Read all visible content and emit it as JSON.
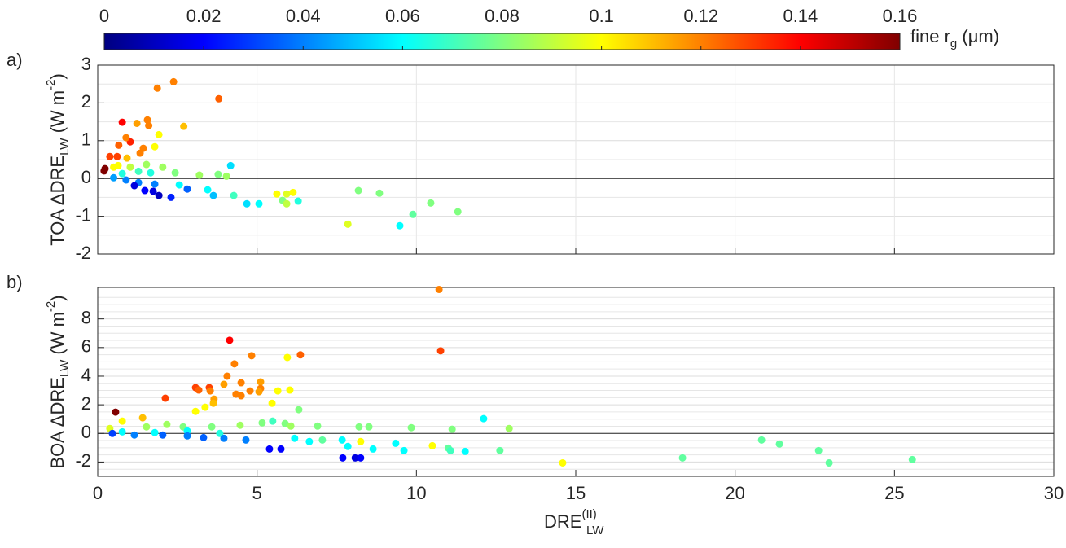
{
  "colorbar": {
    "colormap": "jet",
    "clim": [
      0,
      0.16
    ],
    "ticks": [
      0,
      0.02,
      0.04,
      0.06,
      0.08,
      0.1,
      0.12,
      0.14,
      0.16
    ],
    "label": {
      "main": "fine r",
      "sub": "g",
      "unit": " (μm)"
    }
  },
  "chart_data": [
    {
      "type": "scatter",
      "panel_label": "a)",
      "ylabel": {
        "main": "TOA ΔDRE",
        "sub": "LW",
        "unit": " (W m",
        "sup": "-2",
        "end": ")"
      },
      "xlim": [
        0,
        30
      ],
      "xticks": [
        0,
        5,
        10,
        15,
        20,
        25,
        30
      ],
      "xticklabels": false,
      "xgrid": true,
      "ylim": [
        -2,
        3
      ],
      "yticks": [
        -2,
        -1,
        0,
        1,
        2,
        3
      ],
      "yminorticks": [
        -1.5,
        -0.5,
        0.5,
        1.5,
        2.5
      ],
      "grid": true,
      "zero_line": true,
      "x": [
        0.23,
        0.2,
        0.77,
        1.87,
        2.38,
        3.8,
        1.56,
        1.6,
        1.23,
        2.7,
        1.02,
        0.89,
        0.66,
        1.43,
        1.33,
        1.92,
        1.79,
        0.61,
        0.92,
        0.38,
        0.64,
        0.5,
        1.02,
        1.53,
        2.04,
        2.43,
        3.19,
        3.78,
        4.04,
        4.17,
        1.28,
        1.66,
        0.77,
        0.5,
        0.89,
        1.28,
        1.79,
        1.15,
        1.48,
        1.74,
        1.92,
        2.3,
        2.81,
        2.56,
        3.45,
        3.63,
        4.27,
        4.68,
        5.06,
        5.62,
        5.93,
        6.13,
        5.8,
        5.93,
        6.29,
        7.85,
        8.18,
        8.84,
        9.48,
        9.89,
        10.45,
        11.3
      ],
      "y": [
        0.26,
        0.2,
        1.49,
        2.39,
        2.56,
        2.11,
        1.55,
        1.4,
        1.46,
        1.38,
        0.97,
        1.08,
        0.88,
        0.8,
        0.67,
        1.16,
        0.84,
        0.58,
        0.54,
        0.58,
        0.34,
        0.3,
        0.3,
        0.37,
        0.3,
        0.15,
        0.09,
        0.11,
        0.06,
        0.34,
        0.19,
        0.15,
        0.13,
        0.02,
        -0.04,
        -0.11,
        -0.15,
        -0.19,
        -0.32,
        -0.34,
        -0.45,
        -0.5,
        -0.28,
        -0.17,
        -0.3,
        -0.45,
        -0.45,
        -0.67,
        -0.67,
        -0.41,
        -0.41,
        -0.37,
        -0.58,
        -0.67,
        -0.6,
        -1.21,
        -0.32,
        -0.39,
        -1.25,
        -0.95,
        -0.65,
        -0.88
      ],
      "c": [
        0.16,
        0.16,
        0.14,
        0.12,
        0.12,
        0.125,
        0.12,
        0.12,
        0.115,
        0.11,
        0.135,
        0.12,
        0.125,
        0.12,
        0.12,
        0.1,
        0.1,
        0.13,
        0.11,
        0.13,
        0.1,
        0.1,
        0.09,
        0.085,
        0.085,
        0.08,
        0.085,
        0.08,
        0.085,
        0.055,
        0.07,
        0.065,
        0.065,
        0.045,
        0.04,
        0.04,
        0.04,
        0.015,
        0.02,
        0.015,
        0.01,
        0.025,
        0.035,
        0.06,
        0.06,
        0.05,
        0.07,
        0.055,
        0.06,
        0.1,
        0.095,
        0.1,
        0.08,
        0.09,
        0.065,
        0.095,
        0.08,
        0.08,
        0.06,
        0.075,
        0.08,
        0.08
      ]
    },
    {
      "type": "scatter",
      "panel_label": "b)",
      "ylabel": {
        "main": "BOA ΔDRE",
        "sub": "LW",
        "unit": " (W m",
        "sup": "-2",
        "end": ")"
      },
      "xlabel": {
        "main": "DRE",
        "sup": "(II)",
        "sub": "LW"
      },
      "xlim": [
        0,
        30
      ],
      "xticks": [
        0,
        5,
        10,
        15,
        20,
        25,
        30
      ],
      "xticklabels": true,
      "xgrid": false,
      "ylim": [
        -3,
        10.2
      ],
      "yticks": [
        -2,
        0,
        2,
        4,
        6,
        8
      ],
      "yminorticks": [
        -2.5,
        -1.5,
        -1,
        -0.5,
        0.5,
        1,
        1.5,
        2.5,
        3,
        3.5,
        4.5,
        5,
        5.5,
        6.5,
        7,
        7.5,
        8.5,
        9,
        9.5
      ],
      "grid": true,
      "zero_line": true,
      "x": [
        0.56,
        10.71,
        10.76,
        4.14,
        6.36,
        4.83,
        4.29,
        5.95,
        2.12,
        3.07,
        3.17,
        3.5,
        3.53,
        4.06,
        3.96,
        4.5,
        4.34,
        4.5,
        4.78,
        5.11,
        5.11,
        5.06,
        5.65,
        6.03,
        5.47,
        3.65,
        3.63,
        3.37,
        3.07,
        6.31,
        1.41,
        0.77,
        0.38,
        1.53,
        2.17,
        2.68,
        3.58,
        4.47,
        5.16,
        5.49,
        5.88,
        6.06,
        6.9,
        8.2,
        8.51,
        9.84,
        11.12,
        12.91,
        12.11,
        0.77,
        1.79,
        2.81,
        3.83,
        0.46,
        1.15,
        2.04,
        2.81,
        3.32,
        3.96,
        4.65,
        5.39,
        5.75,
        6.18,
        6.64,
        7.05,
        7.67,
        7.69,
        8.08,
        8.25,
        7.85,
        8.25,
        8.64,
        9.35,
        9.61,
        10.5,
        11.0,
        11.07,
        11.53,
        12.62,
        14.59,
        18.35,
        20.83,
        21.39,
        22.62,
        22.95,
        25.56
      ],
      "y": [
        1.49,
        10.06,
        5.77,
        6.51,
        5.49,
        5.43,
        4.86,
        5.31,
        2.46,
        3.2,
        3.03,
        3.2,
        2.97,
        4.0,
        3.43,
        3.54,
        2.74,
        2.63,
        2.97,
        3.6,
        3.14,
        2.91,
        2.97,
        3.03,
        2.11,
        2.4,
        2.11,
        1.83,
        1.54,
        1.66,
        1.09,
        0.86,
        0.34,
        0.46,
        0.63,
        0.46,
        0.46,
        0.57,
        0.74,
        0.86,
        0.69,
        0.51,
        0.51,
        0.46,
        0.46,
        0.4,
        0.29,
        0.34,
        1.03,
        0.11,
        0.06,
        0.17,
        0,
        0,
        -0.11,
        -0.11,
        -0.17,
        -0.29,
        -0.34,
        -0.46,
        -1.09,
        -1.09,
        -0.34,
        -0.57,
        -0.46,
        -0.46,
        -1.71,
        -1.71,
        -1.71,
        -0.91,
        -0.57,
        -1.09,
        -0.69,
        -1.2,
        -0.86,
        -1.03,
        -1.2,
        -1.26,
        -1.2,
        -2.06,
        -1.71,
        -0.46,
        -0.74,
        -1.2,
        -2.06,
        -1.83
      ],
      "c": [
        0.16,
        0.12,
        0.13,
        0.14,
        0.125,
        0.12,
        0.12,
        0.1,
        0.13,
        0.13,
        0.125,
        0.13,
        0.12,
        0.12,
        0.115,
        0.12,
        0.12,
        0.12,
        0.12,
        0.115,
        0.12,
        0.115,
        0.1,
        0.1,
        0.1,
        0.115,
        0.11,
        0.1,
        0.1,
        0.08,
        0.11,
        0.1,
        0.095,
        0.085,
        0.085,
        0.08,
        0.08,
        0.085,
        0.08,
        0.07,
        0.08,
        0.085,
        0.08,
        0.08,
        0.08,
        0.08,
        0.08,
        0.085,
        0.06,
        0.06,
        0.06,
        0.06,
        0.065,
        0.03,
        0.04,
        0.035,
        0.04,
        0.035,
        0.04,
        0.04,
        0.02,
        0.02,
        0.06,
        0.06,
        0.075,
        0.06,
        0.02,
        0.015,
        0.02,
        0.06,
        0.1,
        0.06,
        0.06,
        0.06,
        0.1,
        0.075,
        0.07,
        0.06,
        0.075,
        0.1,
        0.075,
        0.075,
        0.075,
        0.075,
        0.075,
        0.075
      ]
    }
  ]
}
